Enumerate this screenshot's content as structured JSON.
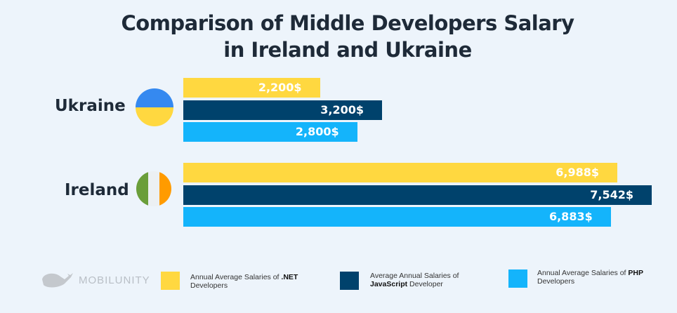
{
  "chart_data": {
    "type": "bar",
    "orientation": "horizontal",
    "title_line1": "Comparison of Middle Developers Salary",
    "title_line2": "in Ireland and Ukraine",
    "categories": [
      "Ukraine",
      "Ireland"
    ],
    "series": [
      {
        "name": "Annual Average Salaries of .NET Developers",
        "color": "#FFD840",
        "values": [
          2200,
          6988
        ],
        "labels": [
          "2,200$",
          "6,988$"
        ]
      },
      {
        "name": "Average Annual Salaries of JavaScript Developer",
        "color": "#00426C",
        "values": [
          3200,
          7542
        ],
        "labels": [
          "3,200$",
          "7,542$"
        ]
      },
      {
        "name": "Annual Average Salaries of PHP Developers",
        "color": "#14B4FB",
        "values": [
          2800,
          6883
        ],
        "labels": [
          "2,800$",
          "6,883$"
        ]
      }
    ],
    "legend_position": "bottom",
    "grid": false
  },
  "legend": [
    {
      "pre": "Annual Average Salaries of ",
      "bold": ".NET",
      "post": "",
      "line2": "Developers"
    },
    {
      "pre": "Average Annual Salaries of",
      "bold": "JavaScript",
      "post": " Developer",
      "line2": ""
    },
    {
      "pre": "Annual Average Salaries of ",
      "bold": "PHP",
      "post": "",
      "line2": "Developers"
    }
  ],
  "logo": {
    "text": "MOBILUNITY"
  },
  "flags": {
    "ukraine": [
      "#3589F0",
      "#FFD840"
    ],
    "ireland": [
      "#6A9E3A",
      "#ECF0F3",
      "#FF9B00"
    ]
  }
}
